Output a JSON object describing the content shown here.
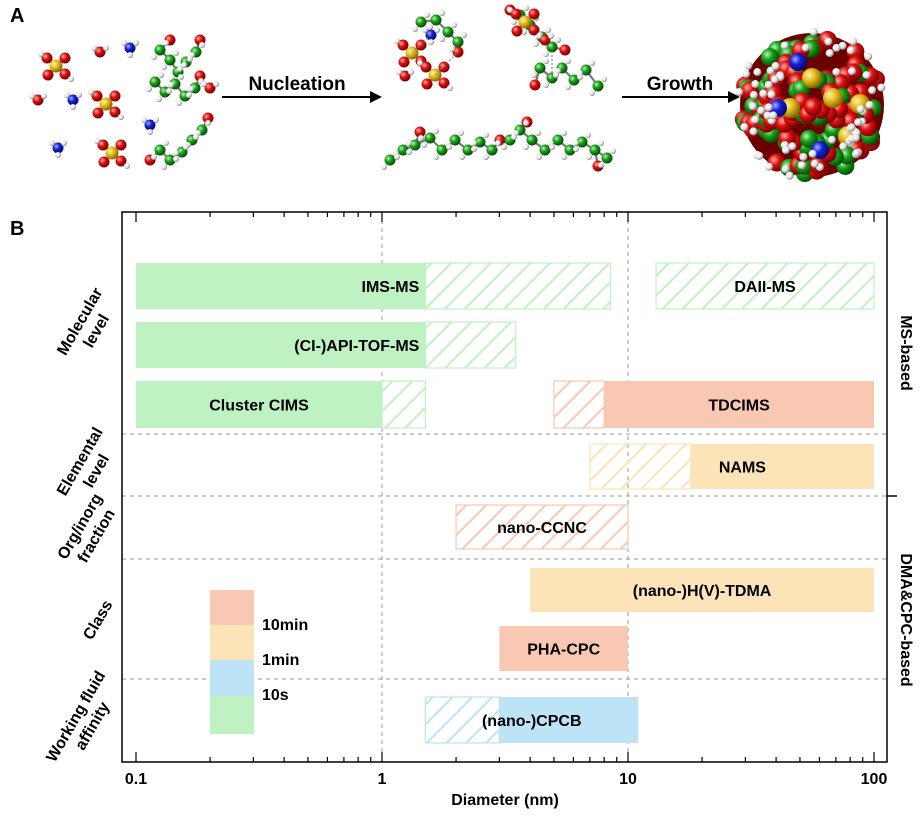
{
  "panel_a": {
    "label": "A",
    "steps": [
      "Nucleation",
      "Growth"
    ],
    "colors": {
      "oxygen": "#e01010",
      "carbon": "#1aa11a",
      "nitrogen": "#1820d8",
      "sulfur": "#e8c020",
      "hydrogen": "#e6e6e6"
    }
  },
  "chart_data": {
    "type": "range-bar",
    "panel_label": "B",
    "title": "",
    "xlabel": "Diameter (nm)",
    "xscale": "log",
    "xlim": [
      0.1,
      100
    ],
    "xticks": [
      "0.1",
      "1",
      "10",
      "100"
    ],
    "categories": [
      "Molecular level",
      "Elemental level",
      "Org/inorg fraction",
      "Class",
      "Working fluid affinity"
    ],
    "groups": [
      "MS-based",
      "DMA&CPC-based"
    ],
    "colors": {
      "10min": "#f9c8b2",
      "1min": "#fde3b8",
      "10s_blue": "#bde3f6",
      "10s_green": "#bff2c2"
    },
    "legend": {
      "labels": [
        "10min",
        "1min",
        "10s"
      ],
      "location": "lower-left"
    },
    "instruments": [
      {
        "name": "IMS-MS",
        "category": "Molecular level",
        "color": "10s_green",
        "solid": [
          0.1,
          1.5
        ],
        "hatched": [
          1.5,
          8.5
        ]
      },
      {
        "name": "DAII-MS",
        "category": "Molecular level",
        "color": "10s_green",
        "solid": null,
        "hatched": [
          13,
          100
        ]
      },
      {
        "name": "(CI-)API-TOF-MS",
        "category": "Molecular level",
        "color": "10s_green",
        "solid": [
          0.1,
          1.5
        ],
        "hatched": [
          1.5,
          3.5
        ]
      },
      {
        "name": "Cluster CIMS",
        "category": "Molecular level",
        "color": "10s_green",
        "solid": [
          0.1,
          1.0
        ],
        "hatched": [
          1.0,
          1.5
        ]
      },
      {
        "name": "TDCIMS",
        "category": "Molecular level",
        "color": "10min",
        "solid": [
          8,
          100
        ],
        "hatched": [
          5,
          8
        ]
      },
      {
        "name": "NAMS",
        "category": "Elemental level",
        "color": "1min",
        "solid": [
          18,
          100
        ],
        "hatched": [
          7,
          18
        ]
      },
      {
        "name": "nano-CCNC",
        "category": "Org/inorg fraction",
        "color": "10min",
        "solid": null,
        "hatched": [
          2,
          10
        ]
      },
      {
        "name": "(nano-)H(V)-TDMA",
        "category": "Class",
        "color": "1min",
        "solid": [
          4,
          100
        ],
        "hatched": null
      },
      {
        "name": "PHA-CPC",
        "category": "Class",
        "color": "10min",
        "solid": [
          3,
          10
        ],
        "hatched": null
      },
      {
        "name": "(nano-)CPCB",
        "category": "Working fluid affinity",
        "color": "10s_blue",
        "solid": [
          3,
          11
        ],
        "hatched": [
          1.5,
          3
        ]
      }
    ]
  }
}
